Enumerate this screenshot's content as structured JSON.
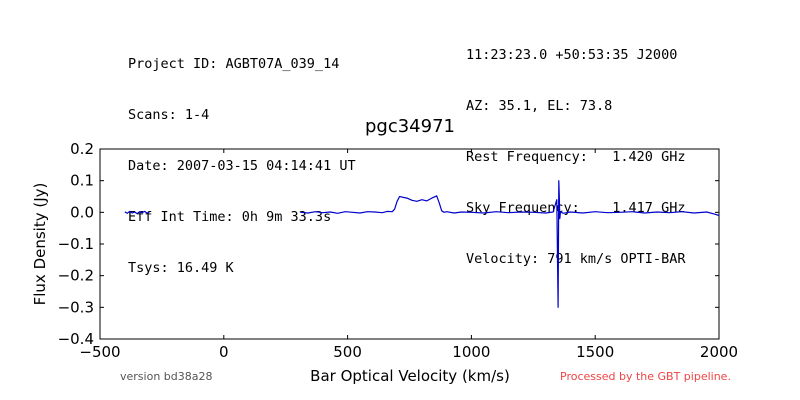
{
  "header": {
    "left": [
      "Project ID: AGBT07A_039_14",
      "Scans: 1-4",
      "Date: 2007-03-15 04:14:41 UT",
      "Eff Int Time: 0h 9m 33.3s",
      "Tsys: 16.49 K"
    ],
    "right": [
      "11:23:23.0 +50:53:35 J2000",
      "AZ: 35.1, EL: 73.8",
      "Rest Frequency:   1.420 GHz",
      "Sky Frequency:    1.417 GHz",
      "Velocity: 791 km/s OPTI-BAR"
    ]
  },
  "footer": {
    "version": "version bd38a28",
    "processed": "Processed by the GBT pipeline.",
    "processed_color": "#ee4444"
  },
  "chart_data": {
    "type": "line",
    "title": "pgc34971",
    "xlabel": "Bar Optical Velocity (km/s)",
    "ylabel": "Flux Density (Jy)",
    "xlim": [
      -500,
      2000
    ],
    "ylim": [
      -0.4,
      0.2
    ],
    "xticks": [
      -500,
      0,
      500,
      1000,
      1500,
      2000
    ],
    "xtick_labels": [
      "−500",
      "0",
      "500",
      "1000",
      "1500",
      "2000"
    ],
    "yticks": [
      0.2,
      0.1,
      0.0,
      -0.1,
      -0.2,
      -0.3,
      -0.4
    ],
    "ytick_labels": [
      "0.2",
      "0.1",
      "0.0",
      "−0.1",
      "−0.2",
      "−0.3",
      "−0.4"
    ],
    "grid": false,
    "line_color": "#0000cc",
    "segments": [
      {
        "x": [
          -400,
          -390,
          -380,
          -370,
          -360,
          -350,
          -340,
          -330,
          -320,
          -310,
          -300
        ],
        "y": [
          0.002,
          -0.003,
          0.003,
          -0.002,
          0.001,
          -0.004,
          0.002,
          -0.001,
          0.003,
          -0.002,
          0.001
        ]
      },
      {
        "x": [
          310,
          340,
          370,
          400,
          430,
          460,
          490,
          520,
          550,
          580,
          610,
          640,
          660,
          680,
          690,
          700,
          710,
          720,
          740,
          760,
          780,
          800,
          820,
          840,
          860,
          870,
          880,
          890,
          900,
          930,
          960,
          1000,
          1050,
          1100,
          1150,
          1200,
          1250,
          1300,
          1330,
          1345,
          1350,
          1353,
          1355,
          1357,
          1360,
          1370,
          1400,
          1450,
          1500,
          1550,
          1600,
          1650,
          1700,
          1750,
          1800,
          1850,
          1900,
          1950,
          1980,
          2000
        ],
        "y": [
          0.0,
          -0.002,
          0.002,
          -0.001,
          0.001,
          -0.003,
          0.002,
          0.0,
          -0.002,
          0.002,
          0.001,
          -0.001,
          0.003,
          0.002,
          0.01,
          0.035,
          0.05,
          0.048,
          0.045,
          0.038,
          0.035,
          0.04,
          0.036,
          0.045,
          0.052,
          0.03,
          0.005,
          0.0,
          0.002,
          -0.002,
          0.001,
          0.0,
          -0.002,
          0.002,
          -0.001,
          0.001,
          0.0,
          -0.002,
          0.001,
          0.04,
          -0.3,
          0.1,
          0.05,
          -0.02,
          0.002,
          -0.003,
          0.001,
          -0.002,
          0.002,
          -0.001,
          0.0,
          0.002,
          -0.002,
          0.001,
          -0.001,
          0.002,
          -0.002,
          0.001,
          -0.005,
          -0.01
        ]
      }
    ]
  }
}
